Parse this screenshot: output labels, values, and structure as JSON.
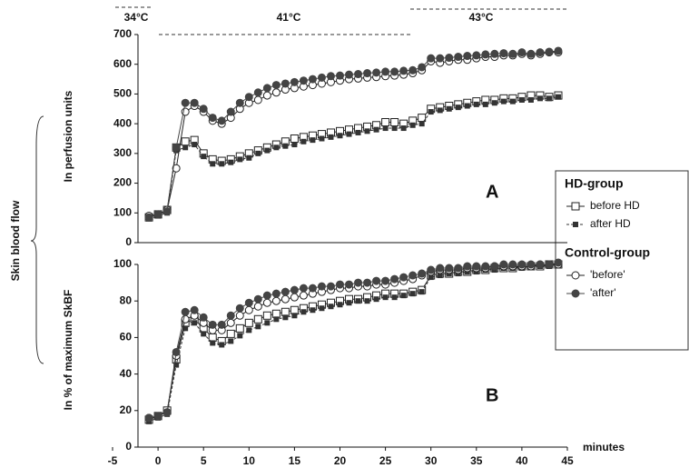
{
  "chart_data": [
    {
      "type": "line",
      "temperature_labels": [
        "34°C",
        "41°C",
        "43°C"
      ],
      "shared_ylabel": "Skin blood flow",
      "ylabel": "In perfusion units",
      "panel_label": "A",
      "legend_groups": [
        "HD-group",
        "Control-group"
      ],
      "x": [
        -1,
        0,
        1,
        2,
        3,
        4,
        5,
        6,
        7,
        8,
        9,
        10,
        11,
        12,
        13,
        14,
        15,
        16,
        17,
        18,
        19,
        20,
        21,
        22,
        23,
        24,
        25,
        26,
        27,
        28,
        29,
        30,
        31,
        32,
        33,
        34,
        35,
        36,
        37,
        38,
        39,
        40,
        41,
        42,
        43,
        44
      ],
      "xlim": [
        -5,
        45
      ],
      "ylim": [
        0,
        700
      ],
      "yticks": [
        0,
        100,
        200,
        300,
        400,
        500,
        600,
        700
      ],
      "series": [
        {
          "name": "before HD",
          "group": 0,
          "color": "#222",
          "marker": "square",
          "filled": false,
          "dashed": false,
          "values": [
            85,
            95,
            110,
            320,
            340,
            345,
            300,
            280,
            275,
            280,
            290,
            300,
            310,
            320,
            330,
            340,
            350,
            355,
            360,
            365,
            370,
            375,
            380,
            385,
            390,
            395,
            405,
            405,
            400,
            410,
            420,
            450,
            455,
            460,
            465,
            470,
            475,
            480,
            480,
            485,
            485,
            490,
            495,
            495,
            490,
            495
          ]
        },
        {
          "name": "after HD",
          "group": 0,
          "color": "#333",
          "marker": "square",
          "filled": true,
          "dashed": true,
          "values": [
            80,
            90,
            100,
            310,
            320,
            330,
            290,
            265,
            265,
            270,
            280,
            285,
            300,
            310,
            320,
            325,
            330,
            340,
            345,
            350,
            355,
            360,
            365,
            370,
            375,
            380,
            385,
            385,
            385,
            395,
            400,
            440,
            445,
            450,
            455,
            460,
            465,
            465,
            470,
            475,
            475,
            480,
            480,
            485,
            485,
            490
          ]
        },
        {
          "name": "'before'",
          "group": 1,
          "color": "#222",
          "marker": "circle",
          "filled": false,
          "dashed": false,
          "values": [
            90,
            95,
            110,
            250,
            440,
            460,
            440,
            410,
            400,
            420,
            450,
            470,
            480,
            495,
            505,
            515,
            520,
            525,
            530,
            535,
            540,
            545,
            550,
            552,
            555,
            557,
            560,
            562,
            565,
            570,
            580,
            610,
            605,
            610,
            615,
            615,
            620,
            625,
            625,
            630,
            630,
            635,
            630,
            635,
            640,
            640
          ]
        },
        {
          "name": "'after'",
          "group": 1,
          "color": "#444",
          "marker": "circle",
          "filled": true,
          "dashed": false,
          "values": [
            85,
            95,
            105,
            320,
            470,
            470,
            450,
            420,
            410,
            440,
            470,
            490,
            505,
            520,
            530,
            535,
            540,
            545,
            550,
            555,
            560,
            562,
            565,
            567,
            570,
            572,
            575,
            575,
            578,
            580,
            590,
            620,
            620,
            622,
            625,
            628,
            630,
            633,
            635,
            637,
            635,
            640,
            635,
            640,
            642,
            645
          ]
        }
      ]
    },
    {
      "type": "line",
      "ylabel": "In % of maximum SkBF",
      "panel_label": "B",
      "xlabel": "minutes",
      "x": [
        -1,
        0,
        1,
        2,
        3,
        4,
        5,
        6,
        7,
        8,
        9,
        10,
        11,
        12,
        13,
        14,
        15,
        16,
        17,
        18,
        19,
        20,
        21,
        22,
        23,
        24,
        25,
        26,
        27,
        28,
        29,
        30,
        31,
        32,
        33,
        34,
        35,
        36,
        37,
        38,
        39,
        40,
        41,
        42,
        43,
        44
      ],
      "xlim": [
        -5,
        45
      ],
      "xticks": [
        -5,
        0,
        5,
        10,
        15,
        20,
        25,
        30,
        35,
        40,
        45
      ],
      "ylim": [
        0,
        100
      ],
      "yticks": [
        0,
        20,
        40,
        60,
        80,
        100
      ],
      "series": [
        {
          "color": "#222",
          "marker": "square",
          "filled": false,
          "dashed": false,
          "values": [
            15,
            17,
            20,
            48,
            68,
            70,
            65,
            60,
            58,
            62,
            65,
            68,
            70,
            72,
            73,
            74,
            75,
            76,
            77,
            78,
            79,
            80,
            81,
            81,
            82,
            83,
            84,
            84,
            84,
            85,
            86,
            94,
            95,
            95,
            96,
            96,
            97,
            97,
            98,
            98,
            98,
            99,
            99,
            99,
            100,
            100
          ]
        },
        {
          "color": "#333",
          "marker": "square",
          "filled": true,
          "dashed": true,
          "values": [
            14,
            16,
            18,
            45,
            65,
            68,
            62,
            57,
            56,
            58,
            61,
            64,
            66,
            68,
            70,
            71,
            72,
            74,
            75,
            76,
            77,
            78,
            79,
            80,
            80,
            81,
            82,
            82,
            83,
            84,
            85,
            93,
            94,
            95,
            95,
            96,
            96,
            97,
            97,
            98,
            98,
            98,
            99,
            99,
            99,
            100
          ]
        },
        {
          "color": "#222",
          "marker": "circle",
          "filled": false,
          "dashed": false,
          "values": [
            16,
            17,
            19,
            50,
            70,
            72,
            68,
            64,
            64,
            68,
            72,
            75,
            77,
            79,
            80,
            81,
            82,
            83,
            84,
            85,
            86,
            87,
            87,
            88,
            88,
            89,
            89,
            90,
            91,
            92,
            94,
            96,
            97,
            97,
            97,
            98,
            98,
            98,
            99,
            99,
            99,
            99,
            99,
            100,
            100,
            100
          ]
        },
        {
          "color": "#444",
          "marker": "circle",
          "filled": true,
          "dashed": false,
          "values": [
            16,
            17,
            19,
            52,
            74,
            75,
            71,
            67,
            67,
            72,
            76,
            79,
            81,
            83,
            84,
            85,
            86,
            87,
            87,
            88,
            88,
            89,
            89,
            90,
            90,
            91,
            91,
            92,
            93,
            94,
            95,
            97,
            98,
            98,
            98,
            99,
            99,
            99,
            99,
            100,
            100,
            100,
            100,
            100,
            100,
            101
          ]
        }
      ]
    }
  ]
}
